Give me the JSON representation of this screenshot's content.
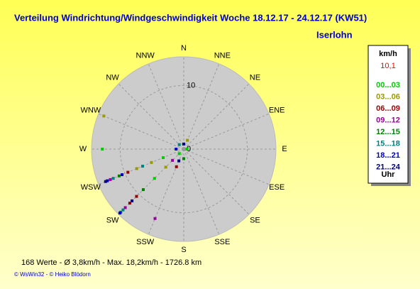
{
  "chart_data": {
    "type": "polar-scatter",
    "title": "Verteilung Windrichtung/Windgeschwindigkeit  Woche 18.12.17 - 24.12.17 (KW51)",
    "location": "Iserlohn",
    "directions": [
      "N",
      "NNE",
      "NE",
      "ENE",
      "E",
      "ESE",
      "SE",
      "SSE",
      "S",
      "SSW",
      "SW",
      "WSW",
      "W",
      "WNW",
      "NW",
      "NNW"
    ],
    "rlim": [
      0,
      14.5
    ],
    "rticks": [
      0,
      10
    ],
    "grid": true,
    "legend_title": "km/h",
    "current_value": "10,1",
    "legend_footer": "Uhr",
    "series": [
      {
        "name": "00...03",
        "color": "#00cc00",
        "direction": [
          270,
          225,
          247.5,
          225,
          90
        ],
        "speed": [
          12.8,
          6.5,
          3.5,
          1.0,
          0.5
        ]
      },
      {
        "name": "03...06",
        "color": "#999900",
        "direction": [
          292.5,
          247.5,
          225,
          247.5,
          22.5
        ],
        "speed": [
          13.6,
          5.5,
          4.0,
          8.0,
          1.5
        ]
      },
      {
        "name": "06...09",
        "color": "#990000",
        "direction": [
          225,
          247.5,
          202.5,
          225
        ],
        "speed": [
          10.5,
          9.5,
          3.0,
          12.0
        ]
      },
      {
        "name": "09...12",
        "color": "#990099",
        "direction": [
          202.5,
          225,
          247.5,
          225
        ],
        "speed": [
          11.8,
          13.0,
          12.5,
          2.5
        ]
      },
      {
        "name": "12...15",
        "color": "#008000",
        "direction": [
          225,
          225,
          247.5,
          180
        ],
        "speed": [
          9.0,
          14.0,
          11.0,
          1.5
        ]
      },
      {
        "name": "15...18",
        "color": "#008080",
        "direction": [
          225,
          247.5,
          247.5,
          315
        ],
        "speed": [
          13.5,
          12.0,
          7.0,
          1.0
        ]
      },
      {
        "name": "18...21",
        "color": "#0000cc",
        "direction": [
          225,
          247.5,
          247.5,
          270
        ],
        "speed": [
          14.2,
          13.0,
          10.5,
          1.2
        ]
      },
      {
        "name": "21...24",
        "color": "#000080",
        "direction": [
          225,
          247.5,
          202.5,
          0
        ],
        "speed": [
          11.5,
          13.3,
          2.0,
          0.8
        ]
      }
    ],
    "footer": "168 Werte   -   Ø 3,8km/h  -  Max. 18,2km/h  -   1726.8 km",
    "credit": "© WsWin32  -  © Heiko Blödorn"
  }
}
